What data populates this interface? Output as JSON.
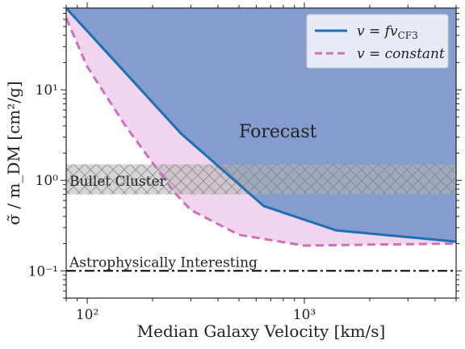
{
  "chart_data": {
    "type": "area",
    "xlabel": "Median Galaxy Velocity [km/s]",
    "ylabel": "σ̃ / m_DM [cm²/g]",
    "xscale": "log",
    "yscale": "log",
    "xlim": [
      80,
      5000
    ],
    "ylim": [
      0.05,
      80
    ],
    "x_ticks": [
      {
        "value": 100,
        "label": "10²"
      },
      {
        "value": 1000,
        "label": "10³"
      }
    ],
    "y_ticks": [
      {
        "value": 0.1,
        "label": "10⁻¹"
      },
      {
        "value": 1,
        "label": "10⁰"
      },
      {
        "value": 10,
        "label": "10¹"
      }
    ],
    "grid": false,
    "legend_position": "top-right",
    "series": [
      {
        "name": "v = fv_CF3",
        "style": "solid",
        "color": "#1f6fb4",
        "x": [
          80,
          270,
          650,
          1400,
          5000
        ],
        "y": [
          80,
          3.3,
          0.52,
          0.28,
          0.21
        ]
      },
      {
        "name": "v = constant",
        "style": "dashed",
        "color": "#d070bc",
        "x": [
          80,
          100,
          150,
          250,
          300,
          500,
          1000,
          2000,
          5000
        ],
        "y": [
          62,
          18,
          4.0,
          0.75,
          0.47,
          0.25,
          0.19,
          0.195,
          0.2
        ]
      }
    ],
    "regions": [
      {
        "label": "Forecast",
        "color": "#5b7bbd",
        "bounded_by": "v = fv_CF3",
        "extends_to": "top"
      },
      {
        "label": "Bullet Cluster",
        "color": "#b4b4b4",
        "hatch": "crosshatch",
        "y_range": [
          0.7,
          1.5
        ]
      }
    ],
    "reference_lines": [
      {
        "label": "Astrophysically Interesting",
        "y": 0.1,
        "style": "dash-dot",
        "color": "#000000"
      }
    ],
    "annotations": {
      "forecast": "Forecast",
      "bullet_cluster": "Bullet Cluster",
      "astro": "Astrophysically Interesting"
    },
    "legend": {
      "entry1_lhs": "v = fv",
      "entry1_sub": "CF3",
      "entry2": "v = constant"
    }
  }
}
